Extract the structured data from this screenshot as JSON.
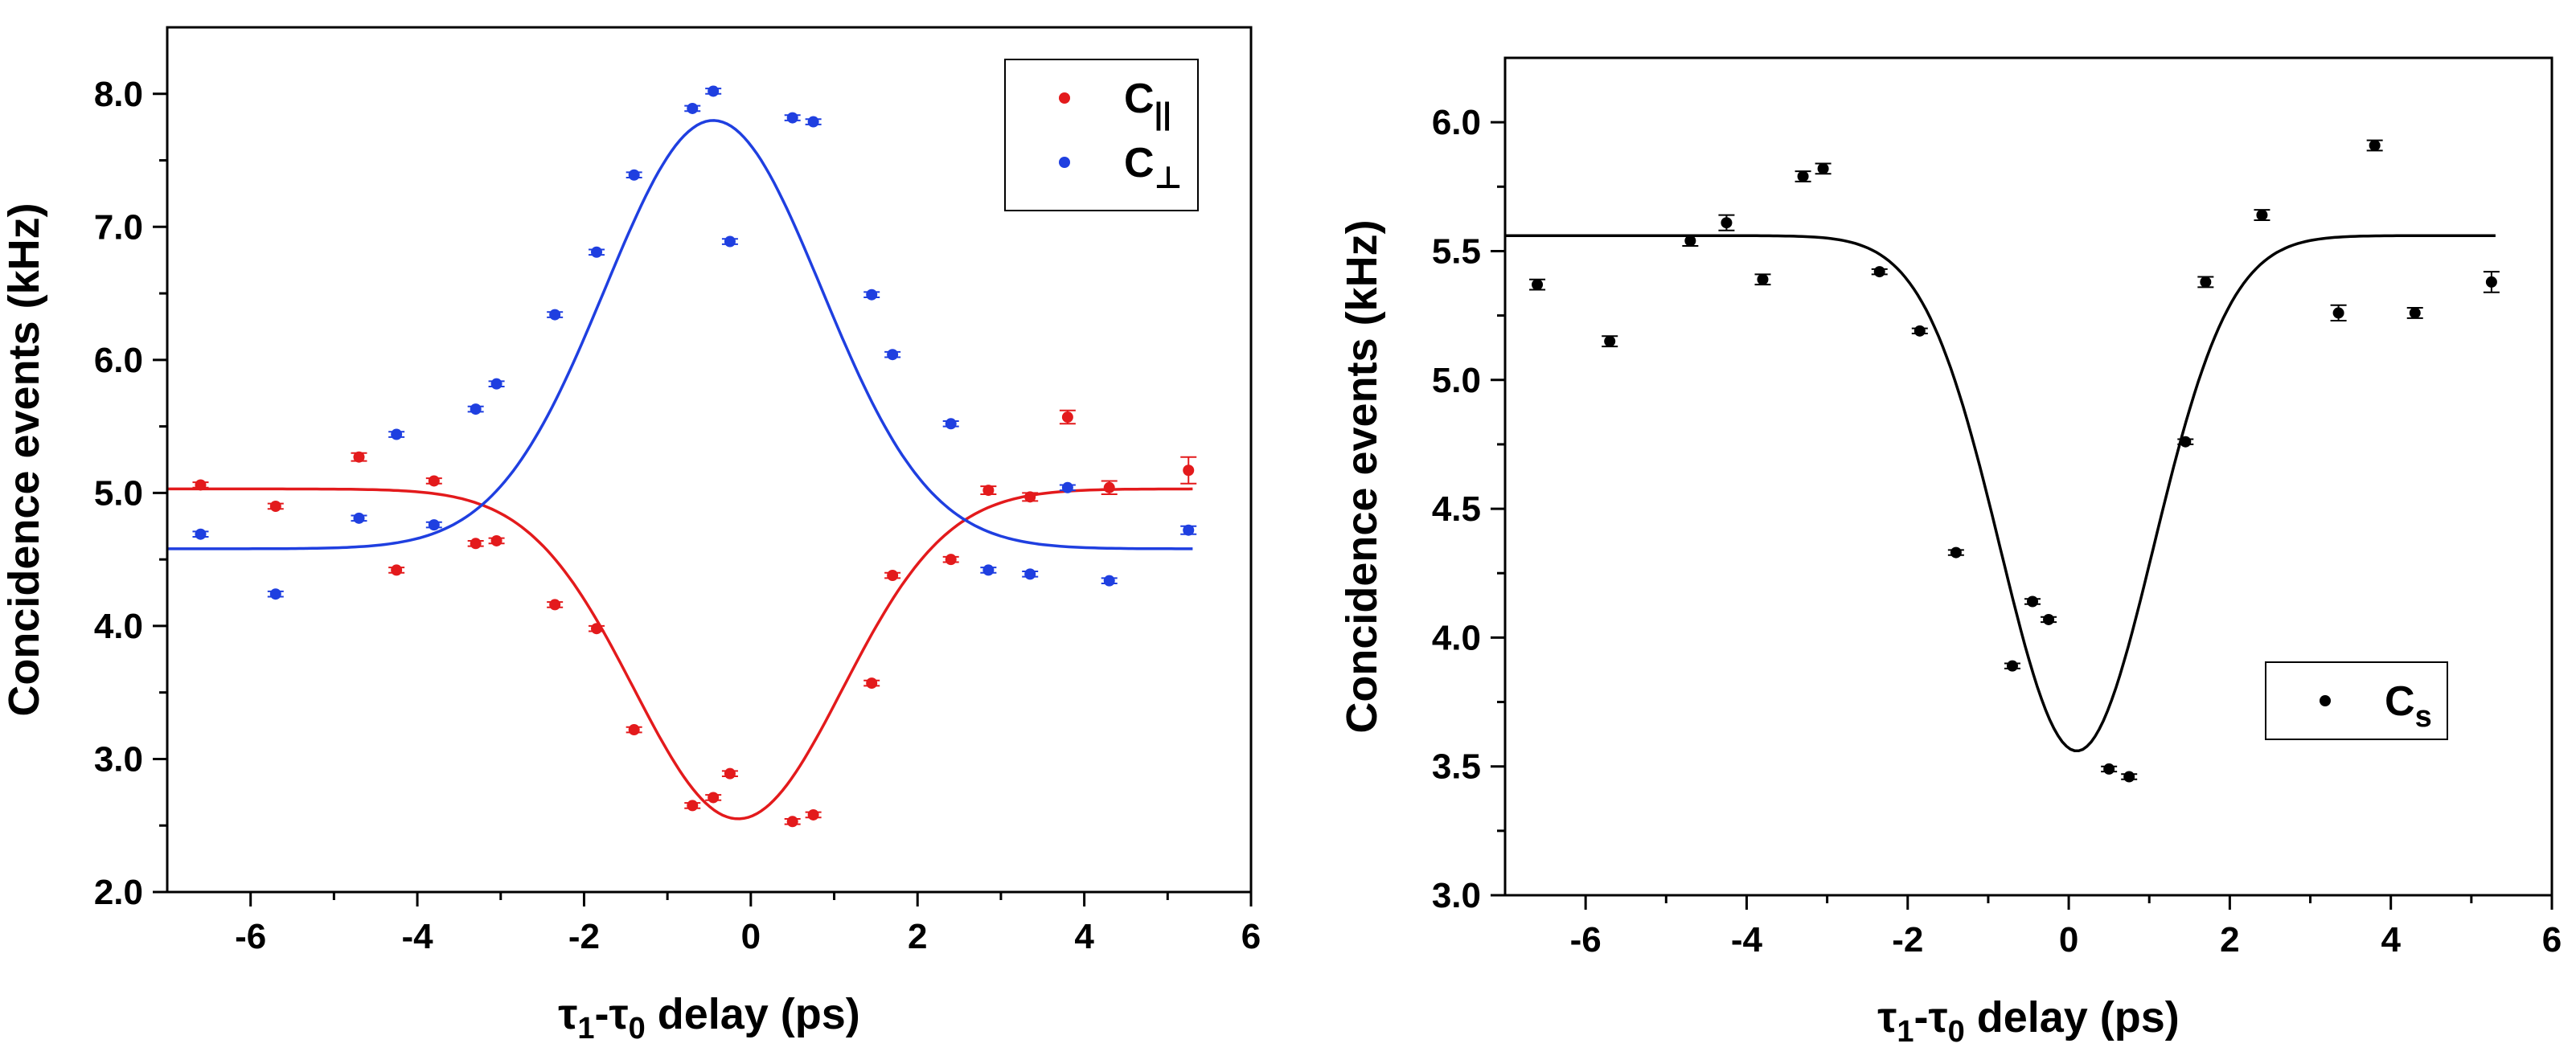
{
  "chart_data": [
    {
      "type": "scatter",
      "xlabel": "τ1-τ0 delay (ps)",
      "xlabel_parts": {
        "tau": "τ",
        "sub1": "1",
        "dash": "-",
        "sub0": "0",
        "rest": " delay (ps)"
      },
      "ylabel": "Concidence events (kHz)",
      "xlim": [
        -7,
        6
      ],
      "ylim": [
        2.0,
        8.5
      ],
      "xticks": [
        -6,
        -4,
        -2,
        0,
        2,
        4,
        6
      ],
      "xtick_labels": [
        "-6",
        "-4",
        "-2",
        "0",
        "2",
        "4",
        "6"
      ],
      "yticks": [
        2.0,
        3.0,
        4.0,
        5.0,
        6.0,
        7.0,
        8.0
      ],
      "ytick_labels": [
        "2.0",
        "3.0",
        "4.0",
        "5.0",
        "6.0",
        "7.0",
        "8.0"
      ],
      "grid": false,
      "legend_position": "top-right",
      "series": [
        {
          "name": "C∥",
          "legend_base": "C",
          "legend_sub": "||",
          "color": "#e31a1c",
          "x": [
            -6.6,
            -5.7,
            -4.7,
            -4.25,
            -3.8,
            -3.3,
            -3.05,
            -2.35,
            -1.85,
            -1.4,
            -0.7,
            -0.45,
            -0.25,
            0.5,
            0.75,
            1.45,
            1.7,
            2.4,
            2.85,
            3.35,
            3.8,
            4.3,
            5.25
          ],
          "y": [
            5.06,
            4.9,
            5.27,
            4.42,
            5.09,
            4.62,
            4.64,
            4.16,
            3.98,
            3.22,
            2.65,
            2.71,
            2.89,
            2.53,
            2.58,
            3.57,
            4.38,
            4.5,
            5.02,
            4.97,
            5.57,
            5.04,
            5.17
          ],
          "yerr": [
            0.02,
            0.02,
            0.03,
            0.02,
            0.02,
            0.02,
            0.02,
            0.02,
            0.02,
            0.02,
            0.02,
            0.02,
            0.02,
            0.02,
            0.02,
            0.02,
            0.02,
            0.02,
            0.03,
            0.03,
            0.05,
            0.05,
            0.1
          ],
          "fit": {
            "model": "gaussian",
            "baseline": 5.03,
            "amplitude": -2.48,
            "center": -0.15,
            "sigma": 1.25,
            "x_range": [
              -7,
              5.3
            ]
          }
        },
        {
          "name": "C⊥",
          "legend_base": "C",
          "legend_sub": "⊥",
          "color": "#1f3fe0",
          "x": [
            -6.6,
            -5.7,
            -4.7,
            -4.25,
            -3.8,
            -3.3,
            -3.05,
            -2.35,
            -1.85,
            -1.4,
            -0.7,
            -0.45,
            -0.25,
            0.5,
            0.75,
            1.45,
            1.7,
            2.4,
            2.85,
            3.35,
            3.8,
            4.3,
            5.25
          ],
          "y": [
            4.69,
            4.24,
            4.81,
            5.44,
            4.76,
            5.63,
            5.82,
            6.34,
            6.81,
            7.39,
            7.89,
            8.02,
            6.89,
            7.82,
            7.79,
            6.49,
            6.04,
            5.52,
            4.42,
            4.39,
            5.04,
            4.34,
            4.72
          ],
          "yerr": [
            0.02,
            0.02,
            0.02,
            0.02,
            0.02,
            0.02,
            0.02,
            0.02,
            0.02,
            0.02,
            0.02,
            0.02,
            0.02,
            0.02,
            0.02,
            0.02,
            0.02,
            0.02,
            0.02,
            0.02,
            0.02,
            0.02,
            0.03
          ],
          "fit": {
            "model": "gaussian",
            "baseline": 4.58,
            "amplitude": 3.22,
            "center": -0.45,
            "sigma": 1.3,
            "x_range": [
              -7,
              5.3
            ]
          }
        }
      ]
    },
    {
      "type": "scatter",
      "xlabel": "τ1-τ0 delay (ps)",
      "xlabel_parts": {
        "tau": "τ",
        "sub1": "1",
        "dash": "-",
        "sub0": "0",
        "rest": " delay (ps)"
      },
      "ylabel": "Concidence events (kHz)",
      "xlim": [
        -7,
        6
      ],
      "ylim": [
        3.0,
        6.25
      ],
      "xticks": [
        -6,
        -4,
        -2,
        0,
        2,
        4,
        6
      ],
      "xtick_labels": [
        "-6",
        "-4",
        "-2",
        "0",
        "2",
        "4",
        "6"
      ],
      "yticks": [
        3.0,
        3.5,
        4.0,
        4.5,
        5.0,
        5.5,
        6.0
      ],
      "ytick_labels": [
        "3.0",
        "3.5",
        "4.0",
        "4.5",
        "5.0",
        "5.5",
        "6.0"
      ],
      "grid": false,
      "legend_position": "bottom-right",
      "series": [
        {
          "name": "Cs",
          "legend_base": "C",
          "legend_sub": "s",
          "color": "#000000",
          "x": [
            -6.6,
            -5.7,
            -4.7,
            -4.25,
            -3.8,
            -3.3,
            -3.05,
            -2.35,
            -1.85,
            -1.4,
            -0.7,
            -0.45,
            -0.25,
            0.5,
            0.75,
            1.45,
            1.7,
            2.4,
            3.35,
            3.8,
            4.3,
            5.25
          ],
          "y": [
            5.37,
            5.15,
            5.54,
            5.61,
            5.39,
            5.79,
            5.82,
            5.42,
            5.19,
            4.33,
            3.89,
            4.14,
            4.07,
            3.49,
            3.46,
            4.76,
            5.38,
            5.64,
            5.26,
            5.91,
            5.26,
            5.38
          ],
          "yerr": [
            0.02,
            0.02,
            0.02,
            0.03,
            0.02,
            0.02,
            0.02,
            0.01,
            0.01,
            0.01,
            0.01,
            0.01,
            0.01,
            0.01,
            0.01,
            0.01,
            0.02,
            0.02,
            0.03,
            0.02,
            0.02,
            0.04
          ],
          "fit": {
            "model": "gaussian",
            "baseline": 5.56,
            "amplitude": -2.0,
            "center": 0.1,
            "sigma": 0.95,
            "x_range": [
              -7,
              5.3
            ]
          }
        }
      ]
    }
  ]
}
